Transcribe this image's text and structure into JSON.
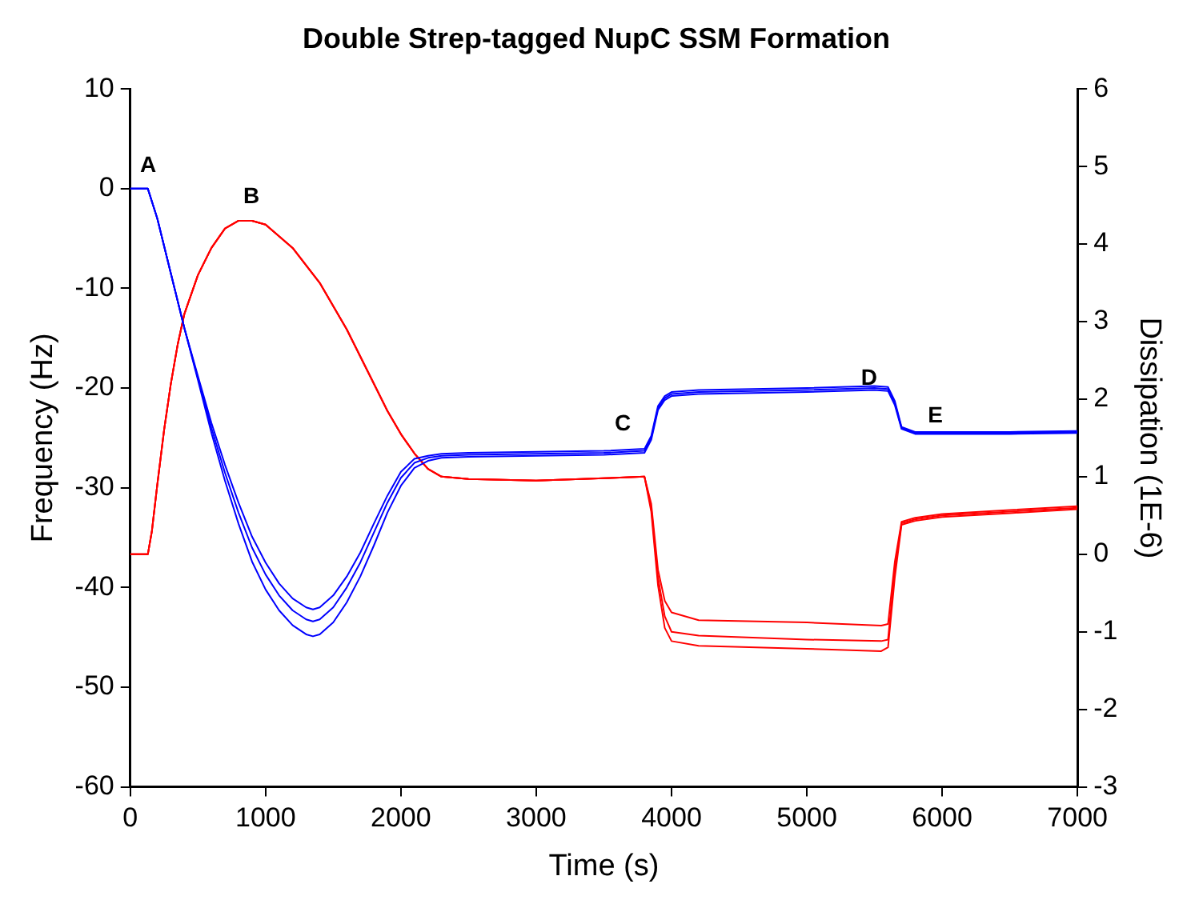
{
  "chart_data": {
    "type": "line",
    "title": "Double Strep-tagged NupC SSM Formation",
    "xlabel": "Time (s)",
    "ylabel": "Frequency (Hz)",
    "y2label": "Dissipation (1E-6)",
    "xlim": [
      0,
      7000
    ],
    "xticks": [
      0,
      1000,
      2000,
      3000,
      4000,
      5000,
      6000,
      7000
    ],
    "ylim": [
      -60,
      10
    ],
    "yticks": [
      -60,
      -50,
      -40,
      -30,
      -20,
      -10,
      0,
      10
    ],
    "y2lim": [
      -3,
      6
    ],
    "y2ticks": [
      -3,
      -2,
      -1,
      0,
      1,
      2,
      3,
      4,
      5,
      6
    ],
    "grid": false,
    "legend": false,
    "marker": "none",
    "line_style": "solid",
    "annotations": [
      "A",
      "B",
      "C",
      "D",
      "E"
    ],
    "series": [
      {
        "color": "#0000ff",
        "x": [
          0,
          130,
          200,
          300,
          400,
          500,
          600,
          700,
          800,
          900,
          1000,
          1100,
          1200,
          1300,
          1350,
          1400,
          1500,
          1600,
          1700,
          1800,
          1900,
          2000,
          2100,
          2200,
          2300,
          2500,
          3000,
          3500,
          3800,
          3850,
          3900,
          3950,
          4000,
          4200,
          5000,
          5500,
          5600,
          5650,
          5700,
          5800,
          6500,
          7000
        ],
        "values": [
          0,
          0,
          -3,
          -8.5,
          -14,
          -18.8,
          -23.5,
          -27.7,
          -31.5,
          -34.9,
          -37.5,
          -39.6,
          -41.1,
          -42,
          -42.2,
          -42,
          -40.8,
          -38.9,
          -36.5,
          -33.6,
          -30.8,
          -28.4,
          -27.1,
          -26.8,
          -26.6,
          -26.5,
          -26.4,
          -26.3,
          -26.1,
          -24.8,
          -21.8,
          -20.8,
          -20.4,
          -20.2,
          -20,
          -19.8,
          -19.9,
          -21.3,
          -23.9,
          -24.4,
          -24.4,
          -24.3
        ]
      },
      {
        "color": "#0000ff",
        "x": [
          0,
          130,
          200,
          300,
          400,
          500,
          600,
          700,
          800,
          900,
          1000,
          1100,
          1200,
          1300,
          1350,
          1400,
          1500,
          1600,
          1700,
          1800,
          1900,
          2000,
          2100,
          2200,
          2300,
          2500,
          3000,
          3500,
          3800,
          3850,
          3900,
          3950,
          4000,
          4200,
          5000,
          5500,
          5600,
          5650,
          5700,
          5800,
          6500,
          7000
        ],
        "values": [
          0,
          0,
          -3,
          -8.5,
          -14,
          -19,
          -24,
          -28.5,
          -32.5,
          -36,
          -38.7,
          -40.8,
          -42.3,
          -43.2,
          -43.4,
          -43.2,
          -42,
          -40,
          -37.5,
          -34.5,
          -31.5,
          -29,
          -27.5,
          -27,
          -26.8,
          -26.7,
          -26.6,
          -26.5,
          -26.3,
          -25,
          -22,
          -21,
          -20.6,
          -20.4,
          -20.2,
          -20,
          -20.1,
          -21.5,
          -24,
          -24.5,
          -24.5,
          -24.4
        ]
      },
      {
        "color": "#0000ff",
        "x": [
          0,
          130,
          200,
          300,
          400,
          500,
          600,
          700,
          800,
          900,
          1000,
          1100,
          1200,
          1300,
          1350,
          1400,
          1500,
          1600,
          1700,
          1800,
          1900,
          2000,
          2100,
          2200,
          2300,
          2500,
          3000,
          3500,
          3800,
          3850,
          3900,
          3950,
          4000,
          4200,
          5000,
          5500,
          5600,
          5650,
          5700,
          5800,
          6500,
          7000
        ],
        "values": [
          0,
          0,
          -3,
          -8.5,
          -14,
          -19.2,
          -24.5,
          -29.3,
          -33.6,
          -37.4,
          -40.2,
          -42.3,
          -43.8,
          -44.7,
          -44.9,
          -44.7,
          -43.5,
          -41.5,
          -38.9,
          -35.8,
          -32.5,
          -29.8,
          -28,
          -27.3,
          -27,
          -26.9,
          -26.8,
          -26.7,
          -26.5,
          -25.2,
          -22.2,
          -21.2,
          -20.8,
          -20.6,
          -20.4,
          -20.2,
          -20.3,
          -21.7,
          -24.1,
          -24.6,
          -24.6,
          -24.5
        ]
      },
      {
        "color": "#ff0000",
        "axis": "y2",
        "x": [
          0,
          130,
          160,
          200,
          250,
          300,
          350,
          400,
          500,
          600,
          700,
          800,
          900,
          1000,
          1200,
          1400,
          1600,
          1800,
          1900,
          2000,
          2100,
          2200,
          2300,
          2500,
          3000,
          3500,
          3800,
          3850,
          3900,
          3950,
          4000,
          4200,
          5000,
          5550,
          5600,
          5650,
          5700,
          5800,
          6000,
          6500,
          7000
        ],
        "values": [
          0,
          0,
          0.3,
          0.9,
          1.6,
          2.2,
          2.7,
          3.1,
          3.6,
          3.95,
          4.2,
          4.3,
          4.3,
          4.25,
          3.95,
          3.5,
          2.9,
          2.2,
          1.85,
          1.55,
          1.3,
          1.1,
          1.0,
          0.97,
          0.95,
          0.98,
          1.0,
          0.65,
          -0.2,
          -0.6,
          -0.75,
          -0.85,
          -0.88,
          -0.92,
          -0.9,
          -0.1,
          0.42,
          0.47,
          0.52,
          0.57,
          0.62
        ]
      },
      {
        "color": "#ff0000",
        "axis": "y2",
        "x": [
          0,
          130,
          160,
          200,
          250,
          300,
          350,
          400,
          500,
          600,
          700,
          800,
          900,
          1000,
          1200,
          1400,
          1600,
          1800,
          1900,
          2000,
          2100,
          2200,
          2300,
          2500,
          3000,
          3500,
          3800,
          3850,
          3900,
          3950,
          4000,
          4200,
          5000,
          5550,
          5600,
          5650,
          5700,
          5800,
          6000,
          6500,
          7000
        ],
        "values": [
          0,
          0,
          0.3,
          0.9,
          1.6,
          2.2,
          2.7,
          3.1,
          3.6,
          3.95,
          4.2,
          4.3,
          4.3,
          4.25,
          3.95,
          3.5,
          2.9,
          2.2,
          1.85,
          1.55,
          1.3,
          1.1,
          1.0,
          0.97,
          0.95,
          0.98,
          1.0,
          0.6,
          -0.3,
          -0.8,
          -1.0,
          -1.05,
          -1.1,
          -1.12,
          -1.1,
          -0.2,
          0.4,
          0.45,
          0.5,
          0.55,
          0.6
        ]
      },
      {
        "color": "#ff0000",
        "axis": "y2",
        "x": [
          0,
          130,
          160,
          200,
          250,
          300,
          350,
          400,
          500,
          600,
          700,
          800,
          900,
          1000,
          1200,
          1400,
          1600,
          1800,
          1900,
          2000,
          2100,
          2200,
          2300,
          2500,
          3000,
          3500,
          3800,
          3850,
          3900,
          3950,
          4000,
          4200,
          5000,
          5550,
          5600,
          5650,
          5700,
          5800,
          6000,
          6500,
          7000
        ],
        "values": [
          0,
          0,
          0.3,
          0.9,
          1.6,
          2.2,
          2.7,
          3.1,
          3.6,
          3.95,
          4.2,
          4.3,
          4.3,
          4.25,
          3.95,
          3.5,
          2.9,
          2.2,
          1.85,
          1.55,
          1.3,
          1.1,
          1.0,
          0.97,
          0.95,
          0.98,
          1.0,
          0.55,
          -0.4,
          -0.95,
          -1.12,
          -1.18,
          -1.22,
          -1.25,
          -1.2,
          -0.3,
          0.38,
          0.43,
          0.48,
          0.53,
          0.58
        ]
      }
    ]
  }
}
